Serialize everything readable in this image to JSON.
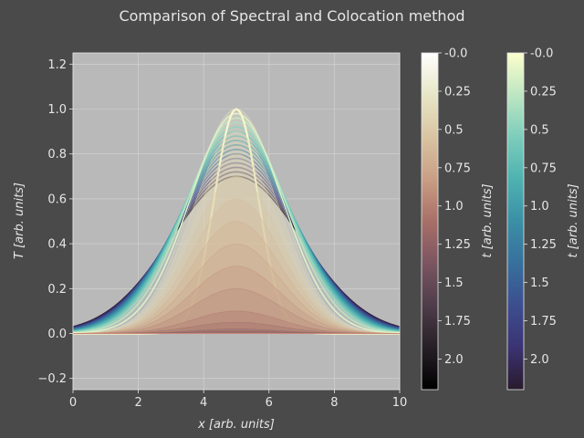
{
  "figure": {
    "background": "#4a4a4a",
    "plot_background": "#b9b9b9",
    "text_color": "#e6e6e6"
  },
  "chart_data": {
    "type": "line",
    "title": "Comparison of Spectral and Colocation method",
    "xlabel": "x [arb. units]",
    "ylabel": "T [arb. units]",
    "xlim": [
      0,
      10
    ],
    "ylim": [
      -0.25,
      1.25
    ],
    "x_ticks": [
      0,
      2,
      4,
      6,
      8,
      10
    ],
    "x_tick_labels": [
      "0",
      "2",
      "4",
      "6",
      "8",
      "10"
    ],
    "y_ticks": [
      -0.2,
      0.0,
      0.2,
      0.4,
      0.6,
      0.8,
      1.0,
      1.2
    ],
    "y_tick_labels": [
      "−0.2",
      "0.0",
      "0.2",
      "0.4",
      "0.6",
      "0.8",
      "1.0",
      "1.2"
    ],
    "grid": true,
    "series_families": [
      {
        "method": "spectral",
        "colormap": "deep",
        "x_center": 5,
        "peak_values": [
          1.0,
          0.98,
          0.96,
          0.94,
          0.92,
          0.9,
          0.88,
          0.86,
          0.84,
          0.82,
          0.8,
          0.78,
          0.76,
          0.74,
          0.72,
          0.7
        ],
        "value_at_x0": [
          0.0,
          0.002,
          0.004,
          0.006,
          0.008,
          0.01,
          0.012,
          0.014,
          0.016,
          0.018,
          0.02,
          0.022,
          0.024,
          0.026,
          0.028,
          0.03
        ]
      },
      {
        "method": "colocation",
        "colormap": "pink",
        "x_center": 5,
        "peak_values": [
          1.0,
          0.9,
          0.8,
          0.7,
          0.6,
          0.5,
          0.4,
          0.3,
          0.2,
          0.1,
          0.05,
          0.02,
          0.01
        ]
      }
    ],
    "colorbars": [
      {
        "colormap": "pink",
        "label": "t [arb. units]",
        "range": [
          -0.0,
          2.2
        ],
        "ticks": [
          0,
          0.25,
          0.5,
          0.75,
          1.0,
          1.25,
          1.5,
          1.75,
          2.0
        ],
        "tick_labels": [
          "-0.0",
          "0.25",
          "0.5",
          "0.75",
          "1.0",
          "1.25",
          "1.5",
          "1.75",
          "2.0"
        ],
        "stops": [
          "#ffffff",
          "#e7e6c6",
          "#d9c4a2",
          "#c99e84",
          "#a86f68",
          "#7b5561",
          "#4e3d4a",
          "#262026",
          "#000000"
        ]
      },
      {
        "colormap": "deep",
        "label": "t [arb. units]",
        "range": [
          -0.0,
          2.2
        ],
        "ticks": [
          0,
          0.25,
          0.5,
          0.75,
          1.0,
          1.25,
          1.5,
          1.75,
          2.0
        ],
        "tick_labels": [
          "-0.0",
          "0.25",
          "0.5",
          "0.75",
          "1.0",
          "1.25",
          "1.5",
          "1.75",
          "2.0"
        ],
        "stops": [
          "#fdfecc",
          "#bde6c2",
          "#7ccdbb",
          "#4eb2b0",
          "#3b8fa6",
          "#37709c",
          "#3c4e8f",
          "#3b3373",
          "#281a2c"
        ]
      }
    ]
  }
}
